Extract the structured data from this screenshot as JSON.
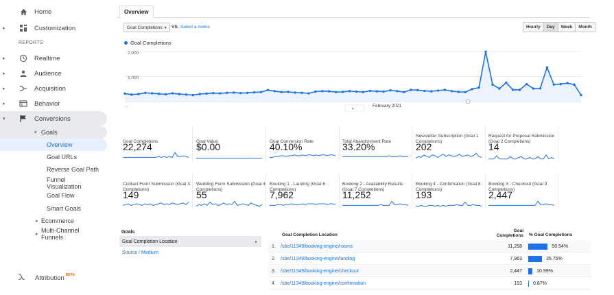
{
  "sidebar": {
    "home": "Home",
    "customization": "Customization",
    "reports_header": "REPORTS",
    "realtime": "Realtime",
    "audience": "Audience",
    "acquisition": "Acquisition",
    "behavior": "Behavior",
    "conversions": "Conversions",
    "goals": "Goals",
    "goal_items": [
      "Overview",
      "Goal URLs",
      "Reverse Goal Path",
      "Funnel Visualization",
      "Goal Flow",
      "Smart Goals"
    ],
    "ecommerce": "Ecommerce",
    "multichannel": "Multi-Channel Funnels",
    "attribution": "Attribution",
    "attribution_badge": "BETA"
  },
  "tab": "Overview",
  "controls": {
    "metric": "Goal Completions",
    "vs": "VS.",
    "select_metric": "Select a metric",
    "granularity": [
      "Hourly",
      "Day",
      "Week",
      "Month"
    ],
    "granularity_selected": "Day"
  },
  "chart_data": {
    "type": "line",
    "series": [
      {
        "name": "Goal Completions",
        "values": [
          320,
          280,
          300,
          350,
          330,
          310,
          290,
          330,
          300,
          280,
          260,
          300,
          320,
          340,
          330,
          350,
          360,
          340,
          350,
          370,
          380,
          460,
          420,
          380,
          390,
          360,
          350,
          330,
          400,
          420,
          410,
          380,
          390,
          420,
          400,
          380,
          430,
          410,
          400,
          450,
          420,
          380,
          470,
          460,
          430,
          410,
          440,
          470,
          420,
          390,
          380,
          500,
          560,
          2000,
          680,
          520,
          760,
          470,
          470,
          700,
          520,
          530,
          1370,
          680,
          700,
          740,
          680,
          260
        ]
      }
    ],
    "ytick_labels": [
      "2,000",
      "1,000"
    ],
    "ylim": [
      0,
      2150
    ],
    "x_label": "February 2021",
    "x_start": "...",
    "color": "#1a73e8"
  },
  "cards": [
    {
      "title": "Goal Completions",
      "value": "22,274"
    },
    {
      "title": "Goal Value",
      "value": "$0.00"
    },
    {
      "title": "Goal Conversion Rate",
      "value": "40.10%"
    },
    {
      "title": "Total Abandonment Rate",
      "value": "33.20%"
    },
    {
      "title": "Newsletter Subscription (Goal 1 Completions)",
      "value": "202"
    },
    {
      "title": "Request for Proposal Submission (Goal 2 Completions)",
      "value": "14"
    },
    {
      "title": "Contact Form Submission (Goal 3 Completions)",
      "value": "149"
    },
    {
      "title": "Wedding Form Submission (Goal 4 Completions)",
      "value": "55"
    },
    {
      "title": "Booking 1 - Landing (Goal 6 Completions)",
      "value": "7,962"
    },
    {
      "title": "Booking 2 - Availability Results (Goal 7 Completions)",
      "value": "11,252"
    },
    {
      "title": "Booking 4 - Confirmation (Goal 8 Completions)",
      "value": "193"
    },
    {
      "title": "Booking 3 - Checkout (Goal 9 Completions)",
      "value": "2,447"
    }
  ],
  "goals_panel": {
    "header": "Goals",
    "selected": "Goal Completion Location",
    "other": "Source / Medium"
  },
  "table": {
    "col_location": "Goal Completion Location",
    "col_completions_1": "Goal",
    "col_completions_2": "Completions",
    "col_pct": "% Goal Completions",
    "rows": [
      {
        "idx": "1.",
        "location": "/sbe/11349/booking-engine/rooms",
        "completions": "11,258",
        "pct": "50.54%",
        "share": 0.5054
      },
      {
        "idx": "2.",
        "location": "/sbe/11349/booking-engine/landing",
        "completions": "7,963",
        "pct": "35.75%",
        "share": 0.3575
      },
      {
        "idx": "3.",
        "location": "/sbe/11349/booking-engine/checkout",
        "completions": "2,447",
        "pct": "10.99%",
        "share": 0.1099
      },
      {
        "idx": "4.",
        "location": "/sbe/11349/booking-engine/confirmation",
        "completions": "193",
        "pct": "0.87%",
        "share": 0.0087
      }
    ]
  }
}
